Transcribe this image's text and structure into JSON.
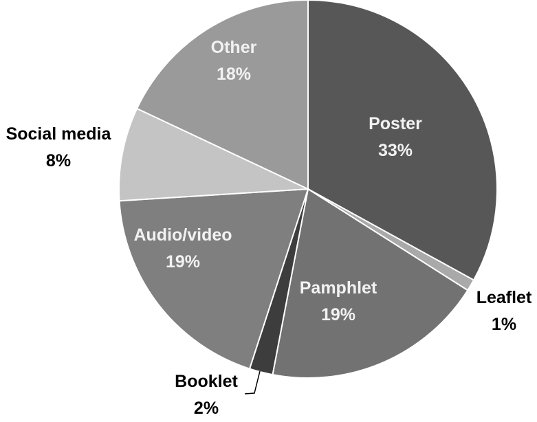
{
  "chart_data": {
    "type": "pie",
    "title": "",
    "start_angle_deg": 0,
    "direction": "clockwise",
    "slices": [
      {
        "label": "Poster",
        "value": 33,
        "display": "33%",
        "color": "#575757",
        "label_color": "#f2f2f2"
      },
      {
        "label": "Leaflet",
        "value": 1,
        "display": "1%",
        "color": "#a9a9a9",
        "label_color": "#000000"
      },
      {
        "label": "Pamphlet",
        "value": 19,
        "display": "19%",
        "color": "#727272",
        "label_color": "#f2f2f2"
      },
      {
        "label": "Booklet",
        "value": 2,
        "display": "2%",
        "color": "#3d3d3d",
        "label_color": "#000000"
      },
      {
        "label": "Audio/video",
        "value": 19,
        "display": "19%",
        "color": "#7f7f7f",
        "label_color": "#f2f2f2"
      },
      {
        "label": "Social media",
        "value": 8,
        "display": "8%",
        "color": "#c4c4c4",
        "label_color": "#000000"
      },
      {
        "label": "Other",
        "value": 18,
        "display": "18%",
        "color": "#9a9a9a",
        "label_color": "#f2f2f2"
      }
    ]
  }
}
